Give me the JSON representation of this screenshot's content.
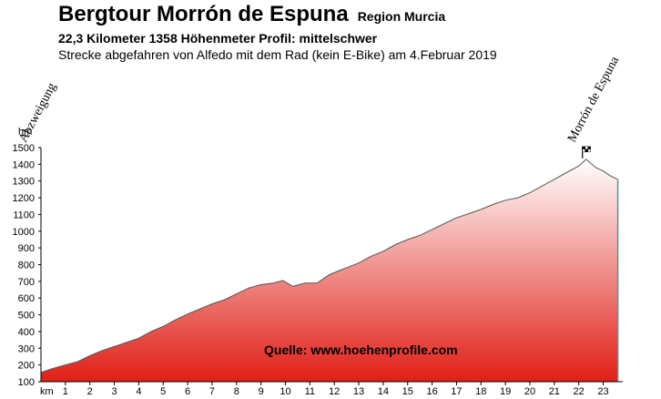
{
  "header": {
    "title": "Bergtour Morrón de Espuna",
    "region": "Region Murcia",
    "subtitle": "22,3 Kilometer  1358 Höhenmeter  Profil: mittelschwer",
    "description": "Strecke abgefahren von Alfedo mit dem Rad (kein E-Bike) am 4.Februar 2019"
  },
  "chart_data": {
    "type": "area",
    "ylabel": "hm",
    "xlabel": "km",
    "ylim": [
      100,
      1500
    ],
    "yticks": [
      100,
      200,
      300,
      400,
      500,
      600,
      700,
      800,
      900,
      1000,
      1100,
      1200,
      1300,
      1400,
      1500
    ],
    "xlim": [
      0,
      23.8
    ],
    "xticks": [
      1,
      2,
      3,
      4,
      5,
      6,
      7,
      8,
      9,
      10,
      11,
      12,
      13,
      14,
      15,
      16,
      17,
      18,
      19,
      20,
      21,
      22,
      23
    ],
    "grid": false,
    "fill_gradient": [
      "#e01f17",
      "#ffffff"
    ],
    "series": [
      {
        "x": [
          0,
          0.5,
          1,
          1.5,
          2,
          2.5,
          3,
          3.5,
          4,
          4.5,
          5,
          5.5,
          6,
          6.5,
          7,
          7.5,
          8,
          8.5,
          9,
          9.5,
          9.9,
          10.3,
          10.8,
          11.3,
          11.8,
          12.3,
          13,
          13.5,
          14,
          14.5,
          15,
          15.5,
          16,
          16.5,
          17,
          17.5,
          18,
          18.5,
          19,
          19.5,
          20,
          20.5,
          21,
          21.5,
          22,
          22.3,
          22.7,
          23,
          23.3,
          23.6
        ],
        "values": [
          155,
          180,
          200,
          220,
          255,
          285,
          310,
          335,
          360,
          400,
          430,
          470,
          505,
          535,
          565,
          590,
          625,
          660,
          680,
          690,
          705,
          670,
          690,
          690,
          740,
          770,
          810,
          850,
          880,
          920,
          950,
          975,
          1010,
          1045,
          1080,
          1105,
          1130,
          1160,
          1185,
          1200,
          1230,
          1270,
          1310,
          1350,
          1390,
          1430,
          1380,
          1360,
          1330,
          1310
        ]
      }
    ],
    "waypoints": [
      {
        "label": "Abzweigung",
        "km": 0
      },
      {
        "label": "Morrón de Espuna",
        "km": 22.3
      }
    ],
    "annotation": "Quelle: www.hoehenprofile.com"
  }
}
